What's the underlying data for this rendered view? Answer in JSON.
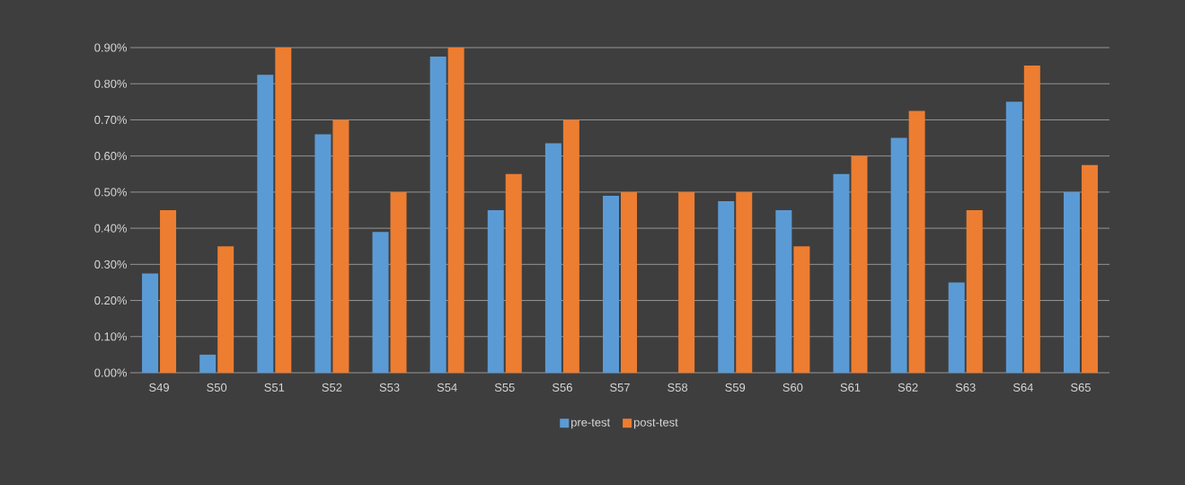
{
  "chart_data": {
    "type": "bar",
    "categories": [
      "S49",
      "S50",
      "S51",
      "S52",
      "S53",
      "S54",
      "S55",
      "S56",
      "S57",
      "S58",
      "S59",
      "S60",
      "S61",
      "S62",
      "S63",
      "S64",
      "S65"
    ],
    "series": [
      {
        "name": "pre-test",
        "color": "#5b9bd5",
        "values": [
          0.275,
          0.05,
          0.825,
          0.66,
          0.39,
          0.875,
          0.45,
          0.635,
          0.49,
          0.0,
          0.475,
          0.45,
          0.55,
          0.65,
          0.25,
          0.75,
          0.5
        ]
      },
      {
        "name": "post-test",
        "color": "#ed7d31",
        "values": [
          0.45,
          0.35,
          0.9,
          0.7,
          0.5,
          0.9,
          0.55,
          0.7,
          0.5,
          0.5,
          0.5,
          0.35,
          0.6,
          0.725,
          0.45,
          0.85,
          0.575
        ]
      }
    ],
    "ylim": [
      0,
      0.9
    ],
    "yticks": [
      {
        "value": 0,
        "label": "0.00%"
      },
      {
        "value": 0.1,
        "label": "0.10%"
      },
      {
        "value": 0.2,
        "label": "0.20%"
      },
      {
        "value": 0.3,
        "label": "0.30%"
      },
      {
        "value": 0.4,
        "label": "0.40%"
      },
      {
        "value": 0.5,
        "label": "0.50%"
      },
      {
        "value": 0.6,
        "label": "0.60%"
      },
      {
        "value": 0.7,
        "label": "0.70%"
      },
      {
        "value": 0.8,
        "label": "0.80%"
      },
      {
        "value": 0.9,
        "label": "0.90%"
      }
    ],
    "grid": "y",
    "legend": "bottom"
  }
}
